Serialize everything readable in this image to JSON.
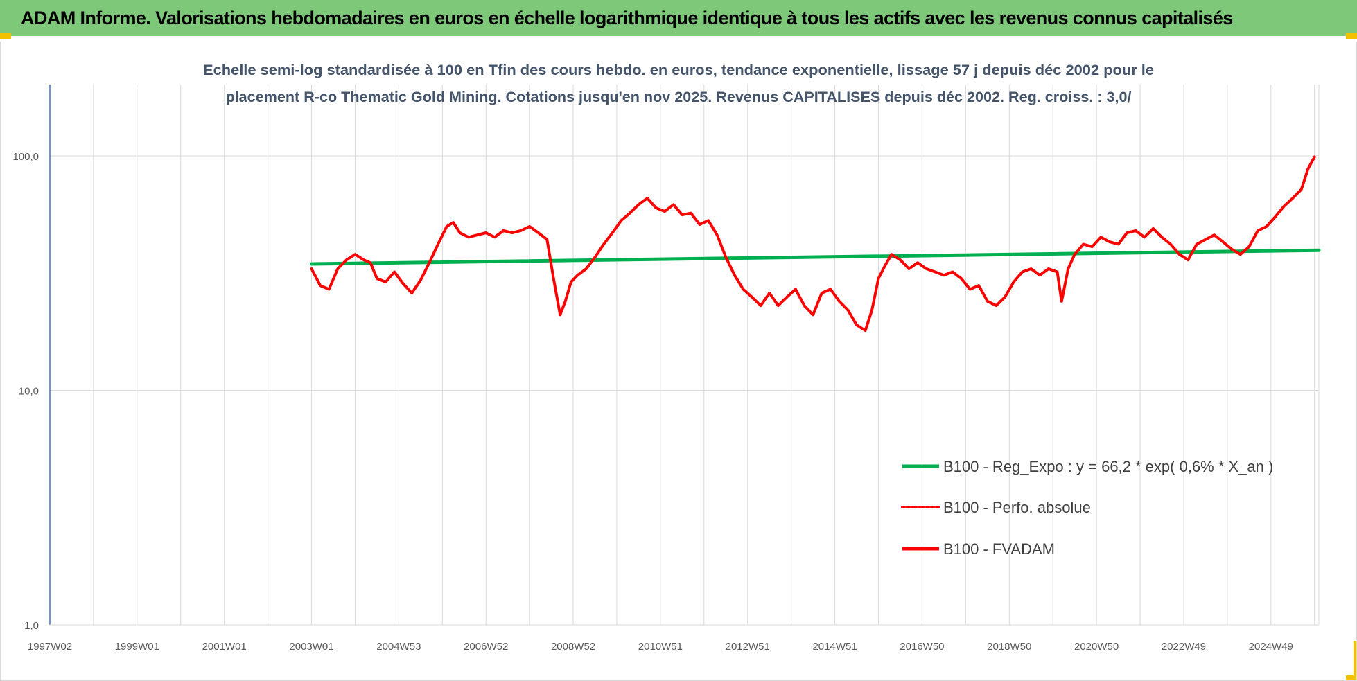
{
  "banner": {
    "title": "ADAM Informe. Valorisations hebdomadaires en euros en échelle logarithmique identique à tous les actifs avec les revenus connus capitalisés"
  },
  "colors": {
    "banner": "#7ec87a",
    "reg_line": "#00b050",
    "fvadam_line": "#ff0000",
    "perfo_line": "#ff0000",
    "corner_marks": "#f2c200"
  },
  "chart_data": {
    "type": "line",
    "title": "",
    "subtitle_lines": [
      "Echelle semi-log standardisée à 100 en Tfin des cours hebdo. en euros, tendance exponentielle, lissage 57 j depuis déc 2002 pour le",
      "placement R-co Thematic Gold Mining. Cotations jusqu'en nov 2025. Revenus CAPITALISES depuis déc 2002. Reg. croiss. : 3,0/"
    ],
    "y_scale": "log",
    "ylim": [
      1,
      200
    ],
    "y_ticks": [
      {
        "value": 1,
        "label": "1,0"
      },
      {
        "value": 10,
        "label": "10,0"
      },
      {
        "value": 100,
        "label": "100,0"
      }
    ],
    "xlim": [
      1997.0,
      2026.1
    ],
    "x_ticks": [
      {
        "value": 1997.0,
        "label": "1997W02"
      },
      {
        "value": 1999.0,
        "label": "1999W01"
      },
      {
        "value": 2001.0,
        "label": "2001W01"
      },
      {
        "value": 2003.0,
        "label": "2003W01"
      },
      {
        "value": 2005.0,
        "label": "2004W53"
      },
      {
        "value": 2007.0,
        "label": "2006W52"
      },
      {
        "value": 2009.0,
        "label": "2008W52"
      },
      {
        "value": 2011.0,
        "label": "2010W51"
      },
      {
        "value": 2013.0,
        "label": "2012W51"
      },
      {
        "value": 2015.0,
        "label": "2014W51"
      },
      {
        "value": 2017.0,
        "label": "2016W50"
      },
      {
        "value": 2019.0,
        "label": "2018W50"
      },
      {
        "value": 2021.0,
        "label": "2020W50"
      },
      {
        "value": 2023.0,
        "label": "2022W49"
      },
      {
        "value": 2025.0,
        "label": "2024W49"
      }
    ],
    "grid": "vertical",
    "legend_position": "right",
    "series": [
      {
        "name": "B100 - Reg_Expo : y = 66,2 * exp( 0,6% *  X_an )",
        "color": "#00b050",
        "style": "solid",
        "x": [
          2003.0,
          2026.1
        ],
        "y": [
          34.6,
          39.6
        ]
      },
      {
        "name": "B100 - Perfo. absolue",
        "color": "#ff0000",
        "style": "dotted",
        "x": [],
        "y": []
      },
      {
        "name": "B100 - FVADAM",
        "color": "#ff0000",
        "style": "solid",
        "x": [
          2003.0,
          2003.2,
          2003.4,
          2003.6,
          2003.8,
          2004.0,
          2004.2,
          2004.35,
          2004.5,
          2004.7,
          2004.9,
          2005.1,
          2005.3,
          2005.5,
          2005.7,
          2005.9,
          2006.1,
          2006.25,
          2006.4,
          2006.6,
          2006.8,
          2007.0,
          2007.2,
          2007.4,
          2007.6,
          2007.8,
          2008.0,
          2008.2,
          2008.4,
          2008.55,
          2008.7,
          2008.82,
          2008.95,
          2009.1,
          2009.3,
          2009.5,
          2009.7,
          2009.9,
          2010.1,
          2010.3,
          2010.5,
          2010.7,
          2010.9,
          2011.1,
          2011.3,
          2011.5,
          2011.7,
          2011.9,
          2012.1,
          2012.3,
          2012.5,
          2012.7,
          2012.9,
          2013.1,
          2013.3,
          2013.5,
          2013.7,
          2013.9,
          2014.1,
          2014.3,
          2014.5,
          2014.7,
          2014.9,
          2015.1,
          2015.3,
          2015.5,
          2015.7,
          2015.85,
          2016.0,
          2016.15,
          2016.3,
          2016.5,
          2016.7,
          2016.9,
          2017.1,
          2017.3,
          2017.5,
          2017.7,
          2017.9,
          2018.1,
          2018.3,
          2018.5,
          2018.7,
          2018.9,
          2019.1,
          2019.3,
          2019.5,
          2019.7,
          2019.9,
          2020.1,
          2020.2,
          2020.35,
          2020.5,
          2020.7,
          2020.9,
          2021.1,
          2021.3,
          2021.5,
          2021.7,
          2021.9,
          2022.1,
          2022.3,
          2022.5,
          2022.7,
          2022.9,
          2023.1,
          2023.3,
          2023.5,
          2023.7,
          2023.9,
          2024.1,
          2024.3,
          2024.5,
          2024.7,
          2024.9,
          2025.1,
          2025.3,
          2025.5,
          2025.7,
          2025.85,
          2026.0
        ],
        "y": [
          33.0,
          28.0,
          27.0,
          33.0,
          36.0,
          38.0,
          36.0,
          35.0,
          30.0,
          29.0,
          32.0,
          28.5,
          26.0,
          29.5,
          35.0,
          42.0,
          50.0,
          52.0,
          47.0,
          45.0,
          46.0,
          47.0,
          45.0,
          48.0,
          47.0,
          48.0,
          50.0,
          47.0,
          44.0,
          30.0,
          21.0,
          24.0,
          29.0,
          31.0,
          33.0,
          37.0,
          42.0,
          47.0,
          53.0,
          57.0,
          62.0,
          66.0,
          60.0,
          58.0,
          62.0,
          56.0,
          57.0,
          51.0,
          53.0,
          46.0,
          37.0,
          31.0,
          27.0,
          25.0,
          23.0,
          26.0,
          23.0,
          25.0,
          27.0,
          23.0,
          21.0,
          26.0,
          27.0,
          24.0,
          22.0,
          19.0,
          18.0,
          22.0,
          30.0,
          34.0,
          38.0,
          36.0,
          33.0,
          35.0,
          33.0,
          32.0,
          31.0,
          32.0,
          30.0,
          27.0,
          28.0,
          24.0,
          23.0,
          25.0,
          29.0,
          32.0,
          33.0,
          31.0,
          33.0,
          32.0,
          24.0,
          33.0,
          38.0,
          42.0,
          41.0,
          45.0,
          43.0,
          42.0,
          47.0,
          48.0,
          45.0,
          49.0,
          45.0,
          42.0,
          38.0,
          36.0,
          42.0,
          44.0,
          46.0,
          43.0,
          40.0,
          38.0,
          41.0,
          48.0,
          50.0,
          55.0,
          61.0,
          66.0,
          72.0,
          88.0,
          99.0
        ]
      }
    ]
  }
}
